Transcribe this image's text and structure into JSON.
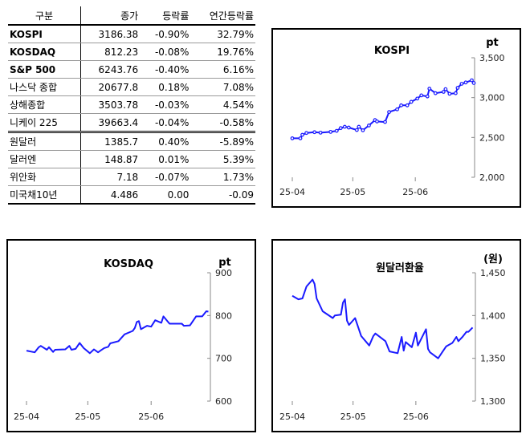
{
  "table": {
    "headers": [
      "구분",
      "종가",
      "등락률",
      "연간등락률"
    ],
    "rows": [
      {
        "name": "KOSPI",
        "close": "3186.38",
        "change": "-0.90%",
        "ytd": "32.79%",
        "bold": true
      },
      {
        "name": "KOSDAQ",
        "close": "812.23",
        "change": "-0.08%",
        "ytd": "19.76%",
        "bold": true
      },
      {
        "name": "S&P 500",
        "close": "6243.76",
        "change": "-0.40%",
        "ytd": "6.16%",
        "bold": true
      },
      {
        "name": "나스닥 종합",
        "close": "20677.8",
        "change": "0.18%",
        "ytd": "7.08%",
        "bold": false
      },
      {
        "name": "상해종합",
        "close": "3503.78",
        "change": "-0.03%",
        "ytd": "4.54%",
        "bold": false
      },
      {
        "name": "니케이 225",
        "close": "39663.4",
        "change": "-0.04%",
        "ytd": "-0.58%",
        "bold": false
      },
      {
        "name": "원달러",
        "close": "1385.7",
        "change": "0.40%",
        "ytd": "-5.89%",
        "bold": false
      },
      {
        "name": "달러엔",
        "close": "148.87",
        "change": "0.01%",
        "ytd": "5.39%",
        "bold": false
      },
      {
        "name": "위안화",
        "close": "7.18",
        "change": "-0.07%",
        "ytd": "1.73%",
        "bold": false
      },
      {
        "name": "미국채10년",
        "close": "4.486",
        "change": "0.00",
        "ytd": "-0.09",
        "bold": false
      }
    ]
  },
  "chart_data": [
    {
      "type": "line",
      "title": "KOSPI",
      "ylabel": "pt",
      "color": "#1a1aff",
      "markers": true,
      "xlim": [
        "2025-04-01",
        "2025-06-30"
      ],
      "xticks": [
        "25-04",
        "25-05",
        "25-06"
      ],
      "ylim": [
        2000,
        3500
      ],
      "yticks": [
        "2,000",
        "2,500",
        "3,000",
        "3,500"
      ],
      "ytick_values": [
        2000,
        2500,
        3000,
        3500
      ],
      "x": [
        "2025-04-01",
        "2025-04-05",
        "2025-04-06",
        "2025-04-08",
        "2025-04-12",
        "2025-04-15",
        "2025-04-20",
        "2025-04-23",
        "2025-04-25",
        "2025-04-27",
        "2025-04-29",
        "2025-05-03",
        "2025-05-04",
        "2025-05-06",
        "2025-05-09",
        "2025-05-12",
        "2025-05-13",
        "2025-05-17",
        "2025-05-19",
        "2025-05-23",
        "2025-05-25",
        "2025-05-28",
        "2025-05-30",
        "2025-06-02",
        "2025-06-04",
        "2025-06-07",
        "2025-06-08",
        "2025-06-11",
        "2025-06-15",
        "2025-06-16",
        "2025-06-18",
        "2025-06-21",
        "2025-06-22",
        "2025-06-24",
        "2025-06-26",
        "2025-06-29",
        "2025-06-30"
      ],
      "y": [
        2489,
        2489,
        2533,
        2556,
        2566,
        2560,
        2570,
        2583,
        2617,
        2634,
        2624,
        2593,
        2634,
        2590,
        2650,
        2718,
        2701,
        2694,
        2819,
        2853,
        2903,
        2903,
        2947,
        2988,
        3028,
        3015,
        3112,
        3055,
        3072,
        3106,
        3048,
        3055,
        3122,
        3173,
        3190,
        3217,
        3183
      ]
    },
    {
      "type": "line",
      "title": "KOSDAQ",
      "ylabel": "pt",
      "color": "#1a1aff",
      "markers": false,
      "xlim": [
        "2025-04-01",
        "2025-06-30"
      ],
      "xticks": [
        "25-04",
        "25-05",
        "25-06"
      ],
      "ylim": [
        600,
        900
      ],
      "yticks": [
        "600",
        "700",
        "800",
        "900"
      ],
      "ytick_values": [
        600,
        700,
        800,
        900
      ],
      "x": [
        "2025-04-01",
        "2025-04-05",
        "2025-04-07",
        "2025-04-08",
        "2025-04-11",
        "2025-04-12",
        "2025-04-14",
        "2025-04-15",
        "2025-04-20",
        "2025-04-22",
        "2025-04-23",
        "2025-04-25",
        "2025-04-27",
        "2025-04-29",
        "2025-05-02",
        "2025-05-04",
        "2025-05-06",
        "2025-05-09",
        "2025-05-11",
        "2025-05-12",
        "2025-05-16",
        "2025-05-19",
        "2025-05-23",
        "2025-05-24",
        "2025-05-25",
        "2025-05-26",
        "2025-05-27",
        "2025-05-30",
        "2025-06-01",
        "2025-06-03",
        "2025-06-06",
        "2025-06-07",
        "2025-06-10",
        "2025-06-16",
        "2025-06-17",
        "2025-06-20",
        "2025-06-23",
        "2025-06-26",
        "2025-06-28",
        "2025-06-29"
      ],
      "y": [
        718,
        714,
        726,
        729,
        720,
        726,
        715,
        720,
        721,
        729,
        720,
        722,
        736,
        724,
        712,
        721,
        714,
        724,
        727,
        735,
        740,
        756,
        764,
        771,
        785,
        787,
        768,
        776,
        774,
        789,
        783,
        798,
        781,
        781,
        776,
        777,
        798,
        798,
        810,
        809
      ]
    },
    {
      "type": "line",
      "title": "원달러환율",
      "ylabel": "(원)",
      "color": "#1a1aff",
      "markers": false,
      "xlim": [
        "2025-04-01",
        "2025-06-30"
      ],
      "xticks": [
        "25-04",
        "25-05",
        "25-06"
      ],
      "ylim": [
        1300,
        1450
      ],
      "yticks": [
        "1,300",
        "1,350",
        "1,400",
        "1,450"
      ],
      "ytick_values": [
        1300,
        1350,
        1400,
        1450
      ],
      "x": [
        "2025-04-01",
        "2025-04-04",
        "2025-04-06",
        "2025-04-08",
        "2025-04-11",
        "2025-04-12",
        "2025-04-13",
        "2025-04-16",
        "2025-04-21",
        "2025-04-22",
        "2025-04-25",
        "2025-04-26",
        "2025-04-27",
        "2025-04-28",
        "2025-04-29",
        "2025-05-02",
        "2025-05-05",
        "2025-05-09",
        "2025-05-11",
        "2025-05-12",
        "2025-05-17",
        "2025-05-19",
        "2025-05-23",
        "2025-05-25",
        "2025-05-26",
        "2025-05-27",
        "2025-05-30",
        "2025-06-01",
        "2025-06-02",
        "2025-06-06",
        "2025-06-07",
        "2025-06-08",
        "2025-06-12",
        "2025-06-14",
        "2025-06-16",
        "2025-06-19",
        "2025-06-21",
        "2025-06-22",
        "2025-06-24",
        "2025-06-26",
        "2025-06-27",
        "2025-06-29"
      ],
      "y": [
        1423,
        1419,
        1420,
        1434,
        1442,
        1437,
        1420,
        1405,
        1397,
        1400,
        1401,
        1415,
        1419,
        1394,
        1389,
        1397,
        1376,
        1365,
        1376,
        1379,
        1370,
        1358,
        1356,
        1375,
        1359,
        1369,
        1363,
        1380,
        1365,
        1384,
        1361,
        1357,
        1350,
        1357,
        1364,
        1368,
        1375,
        1370,
        1375,
        1381,
        1381,
        1386
      ]
    }
  ]
}
